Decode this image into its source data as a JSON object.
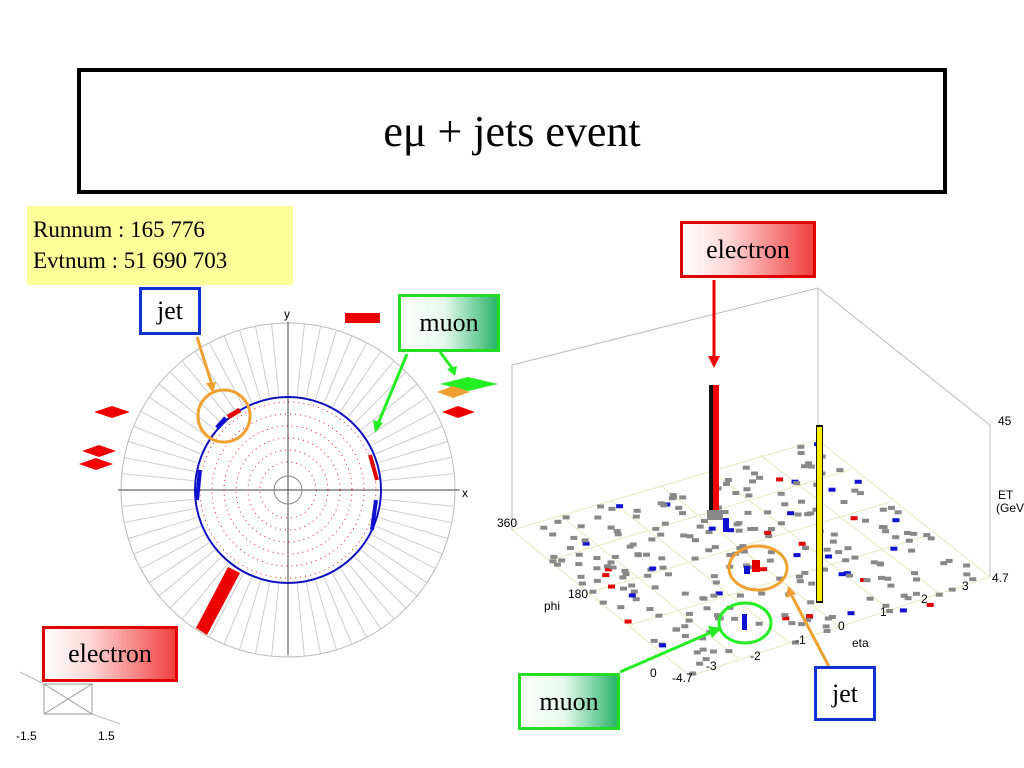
{
  "title": "eμ + jets event",
  "run_info": {
    "runnum": "Runnum : 165 776",
    "evtnum": "Evtnum : 51 690 703"
  },
  "labels": {
    "jet_left": "jet",
    "muon_left": "muon",
    "electron_left": "electron",
    "electron_right": "electron",
    "muon_right": "muon",
    "jet_right": "jet"
  },
  "xy_view": {
    "x_axis": "x",
    "y_axis": "y"
  },
  "small_view": {
    "min_tick": "-1.5",
    "max_tick": "1.5"
  },
  "lego_plot": {
    "phi_label": "phi",
    "eta_label": "eta",
    "et_label_line1": "ET",
    "et_label_line2": "(GeV)",
    "et_max": "45",
    "phi_ticks": [
      "360",
      "180",
      "0"
    ],
    "eta_ticks": [
      "-4.7",
      "-3",
      "-2",
      "-1",
      "0",
      "1",
      "2",
      "3",
      "4.7"
    ]
  },
  "colors": {
    "electron": "#ee0000",
    "muon": "#22ee22",
    "jet": "#f0a030",
    "em": "#e00000",
    "had": "#1010d0",
    "missing_et": "#ffee00"
  }
}
